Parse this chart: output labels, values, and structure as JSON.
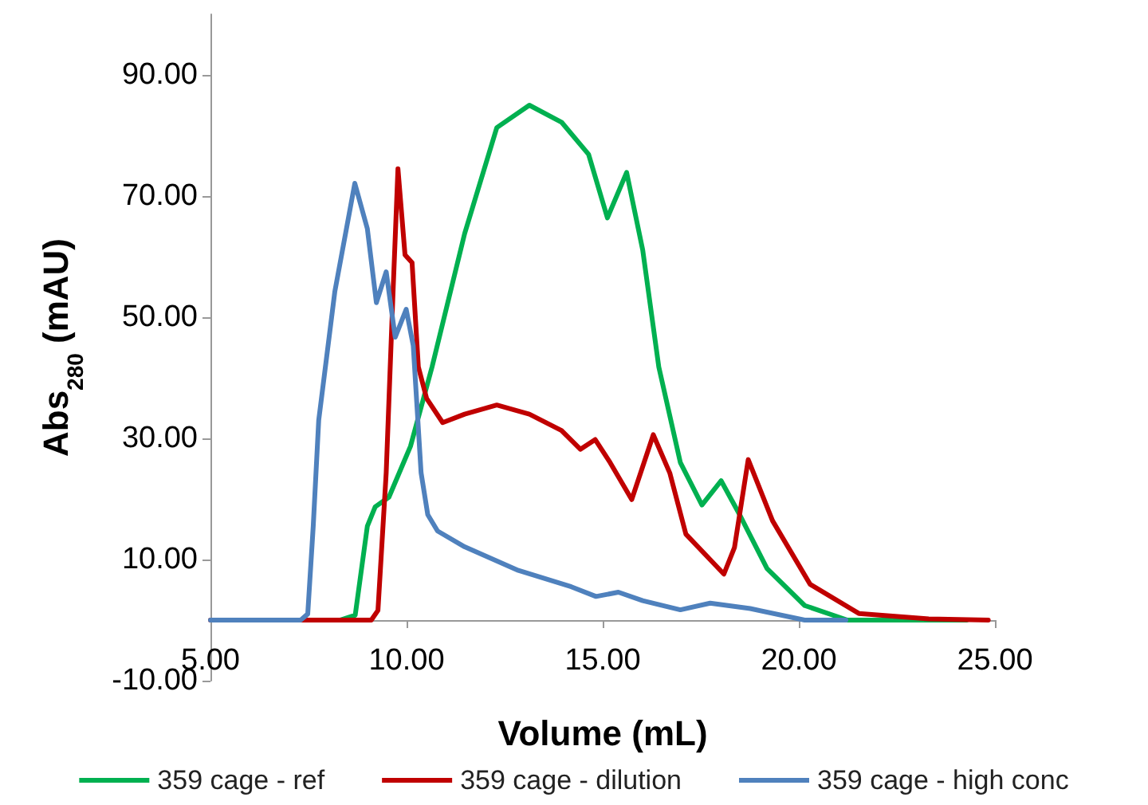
{
  "chart_data": {
    "type": "line",
    "xlabel": "Volume (mL)",
    "ylabel": "Abs$_{280}$ (mAU)",
    "xlim": [
      5,
      25
    ],
    "xticks": [
      {
        "value": 5,
        "label": "5.00"
      },
      {
        "value": 10,
        "label": "10.00"
      },
      {
        "value": 15,
        "label": "15.00"
      },
      {
        "value": 20,
        "label": "20.00"
      },
      {
        "value": 25,
        "label": "25.00"
      }
    ],
    "ylim": [
      -10,
      100
    ],
    "yticks": [
      {
        "value": -10,
        "label": "-10.00"
      },
      {
        "value": 10,
        "label": "10.00"
      },
      {
        "value": 30,
        "label": "30.00"
      },
      {
        "value": 50,
        "label": "50.00"
      },
      {
        "value": 70,
        "label": "70.00"
      },
      {
        "value": 90,
        "label": "90.00"
      }
    ],
    "grid": false,
    "legend": "bottom",
    "marker": "none",
    "line_style": "solid",
    "series": [
      {
        "name": "359 cage - ref",
        "color": "#00b050",
        "x": [
          8.3,
          8.69,
          9.0,
          9.2,
          9.55,
          10.1,
          10.65,
          11.48,
          12.3,
          13.13,
          13.95,
          14.64,
          15.12,
          15.61,
          16.02,
          16.43,
          16.98,
          17.53,
          18.02,
          18.5,
          19.19,
          20.15,
          21.24,
          24.28
        ],
        "values": [
          0,
          0.8,
          15.5,
          18.7,
          20.3,
          28.7,
          41.8,
          63.8,
          81.3,
          85,
          82.2,
          76.9,
          66.4,
          73.9,
          61.1,
          41.8,
          26,
          19,
          23,
          17.3,
          8.5,
          2.4,
          0,
          0
        ]
      },
      {
        "name": "359 cage - dilution",
        "color": "#c00000",
        "x": [
          5,
          9.1,
          9.27,
          9.48,
          9.66,
          9.78,
          9.96,
          10.14,
          10.3,
          10.51,
          10.92,
          11.48,
          12.3,
          13.13,
          13.95,
          14.43,
          14.81,
          15.19,
          15.74,
          16.29,
          16.71,
          17.12,
          18.09,
          18.36,
          18.71,
          19.33,
          20.29,
          21.53,
          23.31,
          24.83
        ],
        "values": [
          0,
          0,
          1.6,
          24.3,
          55,
          74.5,
          60.3,
          59,
          41.8,
          36.6,
          32.6,
          34,
          35.5,
          34,
          31.3,
          28.2,
          29.8,
          26,
          19.9,
          30.6,
          24.3,
          14.2,
          7.6,
          12,
          26.5,
          16.4,
          5.9,
          1.1,
          0.2,
          0
        ]
      },
      {
        "name": "359 cage - high conc",
        "color": "#4f81bd",
        "x": [
          5,
          7.3,
          7.48,
          7.62,
          7.76,
          8.17,
          8.68,
          9.0,
          9.23,
          9.48,
          9.71,
          9.99,
          10.17,
          10.37,
          10.54,
          10.79,
          11.48,
          12.85,
          14.2,
          14.83,
          15.4,
          16.02,
          16.98,
          17.74,
          18.76,
          20.15,
          21.2
        ],
        "values": [
          0,
          0,
          1,
          15.5,
          33,
          54.2,
          72.1,
          64.6,
          52.4,
          57.5,
          46.7,
          51.3,
          45.3,
          24.3,
          17.4,
          14.7,
          12.1,
          8.2,
          5.5,
          3.9,
          4.6,
          3.2,
          1.7,
          2.8,
          1.9,
          0,
          0
        ]
      }
    ]
  }
}
